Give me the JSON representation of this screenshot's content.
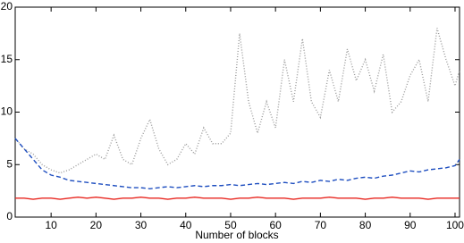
{
  "chart_data": {
    "type": "line",
    "xlabel": "Number of blocks",
    "x": [
      2,
      4,
      6,
      8,
      10,
      12,
      14,
      16,
      18,
      20,
      22,
      24,
      26,
      28,
      30,
      32,
      34,
      36,
      38,
      40,
      42,
      44,
      46,
      48,
      50,
      52,
      54,
      56,
      58,
      60,
      62,
      64,
      66,
      68,
      70,
      72,
      74,
      76,
      78,
      80,
      82,
      84,
      86,
      88,
      90,
      92,
      94,
      96,
      98,
      100,
      101
    ],
    "series": [
      {
        "color": "#e8261f",
        "linestyle": "solid",
        "values": [
          1.8,
          1.8,
          1.7,
          1.8,
          1.8,
          1.7,
          1.8,
          1.9,
          1.8,
          1.9,
          1.8,
          1.7,
          1.8,
          1.8,
          1.9,
          1.8,
          1.8,
          1.7,
          1.8,
          1.8,
          1.9,
          1.8,
          1.8,
          1.8,
          1.7,
          1.8,
          1.8,
          1.9,
          1.8,
          1.8,
          1.8,
          1.7,
          1.8,
          1.8,
          1.8,
          1.9,
          1.8,
          1.8,
          1.8,
          1.7,
          1.8,
          1.8,
          1.9,
          1.8,
          1.8,
          1.8,
          1.7,
          1.8,
          1.8,
          1.8,
          1.8
        ]
      },
      {
        "color": "#1f4fc0",
        "linestyle": "dashed",
        "values": [
          7.5,
          6.5,
          5.5,
          4.5,
          4.0,
          3.8,
          3.5,
          3.4,
          3.3,
          3.2,
          3.1,
          3.0,
          2.9,
          2.8,
          2.8,
          2.7,
          2.8,
          2.9,
          2.8,
          2.9,
          3.0,
          2.9,
          3.0,
          3.0,
          3.1,
          3.0,
          3.1,
          3.2,
          3.1,
          3.2,
          3.3,
          3.2,
          3.4,
          3.3,
          3.5,
          3.4,
          3.6,
          3.5,
          3.7,
          3.8,
          3.7,
          3.9,
          4.0,
          4.2,
          4.4,
          4.3,
          4.5,
          4.6,
          4.7,
          4.9,
          5.5
        ]
      },
      {
        "color": "#999999",
        "linestyle": "dotted",
        "values": [
          7.5,
          6.5,
          6.0,
          5.0,
          4.5,
          4.2,
          4.5,
          5.0,
          5.5,
          6.0,
          5.5,
          7.8,
          5.5,
          5.0,
          7.5,
          9.3,
          6.5,
          5.0,
          5.5,
          7.0,
          6.0,
          8.5,
          7.0,
          7.0,
          8.0,
          17.5,
          11.0,
          8.0,
          11.0,
          8.5,
          15.0,
          11.0,
          17.0,
          11.0,
          9.5,
          14.0,
          11.0,
          16.0,
          13.0,
          15.0,
          12.0,
          15.5,
          10.0,
          11.0,
          13.5,
          15.0,
          11.0,
          18.0,
          15.0,
          12.5,
          14.0
        ]
      }
    ],
    "xlim": [
      2,
      101
    ],
    "xticks": [
      10,
      20,
      30,
      40,
      50,
      60,
      70,
      80,
      90,
      100
    ],
    "ylim": [
      0,
      20
    ],
    "yticks": [
      0,
      5,
      10,
      15,
      20
    ]
  }
}
